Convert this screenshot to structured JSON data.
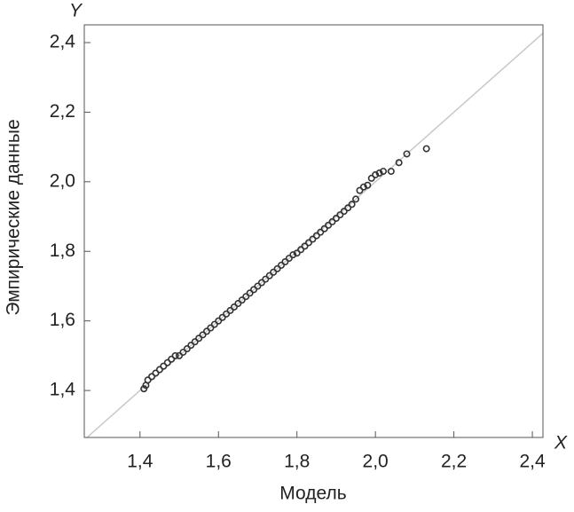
{
  "chart_data": {
    "type": "scatter",
    "x_label": "Модель",
    "y_label": "Эмпирические данные",
    "x_axis_letter": "X",
    "y_axis_letter": "Y",
    "xlim": [
      1.258,
      2.427
    ],
    "ylim": [
      1.265,
      2.451
    ],
    "xticks": [
      {
        "value": 1.4,
        "label": "1,4"
      },
      {
        "value": 1.6,
        "label": "1,6"
      },
      {
        "value": 1.8,
        "label": "1,8"
      },
      {
        "value": 2.0,
        "label": "2,0"
      },
      {
        "value": 2.2,
        "label": "2,2"
      },
      {
        "value": 2.4,
        "label": "2,4"
      }
    ],
    "yticks": [
      {
        "value": 1.4,
        "label": "1,4"
      },
      {
        "value": 1.6,
        "label": "1,6"
      },
      {
        "value": 1.8,
        "label": "1,8"
      },
      {
        "value": 2.0,
        "label": "2,0"
      },
      {
        "value": 2.2,
        "label": "2,2"
      },
      {
        "value": 2.4,
        "label": "2,4"
      }
    ],
    "reference_line": true,
    "color": "#333333",
    "line_color": "#c8c8c8",
    "x": [
      1.41,
      1.415,
      1.42,
      1.43,
      1.44,
      1.45,
      1.46,
      1.47,
      1.48,
      1.49,
      1.5,
      1.51,
      1.52,
      1.53,
      1.54,
      1.55,
      1.56,
      1.57,
      1.58,
      1.59,
      1.6,
      1.61,
      1.62,
      1.63,
      1.64,
      1.65,
      1.66,
      1.67,
      1.68,
      1.69,
      1.7,
      1.71,
      1.72,
      1.73,
      1.74,
      1.75,
      1.76,
      1.77,
      1.78,
      1.79,
      1.8,
      1.81,
      1.82,
      1.83,
      1.84,
      1.85,
      1.86,
      1.87,
      1.88,
      1.89,
      1.9,
      1.91,
      1.92,
      1.93,
      1.94,
      1.95,
      1.96,
      1.97,
      1.98,
      1.99,
      2.0,
      2.01,
      2.02,
      2.04,
      2.06,
      2.08,
      2.13
    ],
    "y": [
      1.405,
      1.415,
      1.43,
      1.44,
      1.45,
      1.46,
      1.47,
      1.48,
      1.49,
      1.5,
      1.5,
      1.51,
      1.52,
      1.53,
      1.54,
      1.55,
      1.56,
      1.57,
      1.58,
      1.59,
      1.6,
      1.61,
      1.62,
      1.63,
      1.64,
      1.65,
      1.66,
      1.67,
      1.68,
      1.69,
      1.7,
      1.71,
      1.72,
      1.73,
      1.74,
      1.75,
      1.76,
      1.77,
      1.78,
      1.79,
      1.795,
      1.805,
      1.815,
      1.825,
      1.835,
      1.845,
      1.855,
      1.865,
      1.875,
      1.885,
      1.895,
      1.905,
      1.915,
      1.925,
      1.935,
      1.95,
      1.975,
      1.985,
      1.99,
      2.01,
      2.02,
      2.025,
      2.03,
      2.03,
      2.055,
      2.08,
      2.095
    ]
  }
}
